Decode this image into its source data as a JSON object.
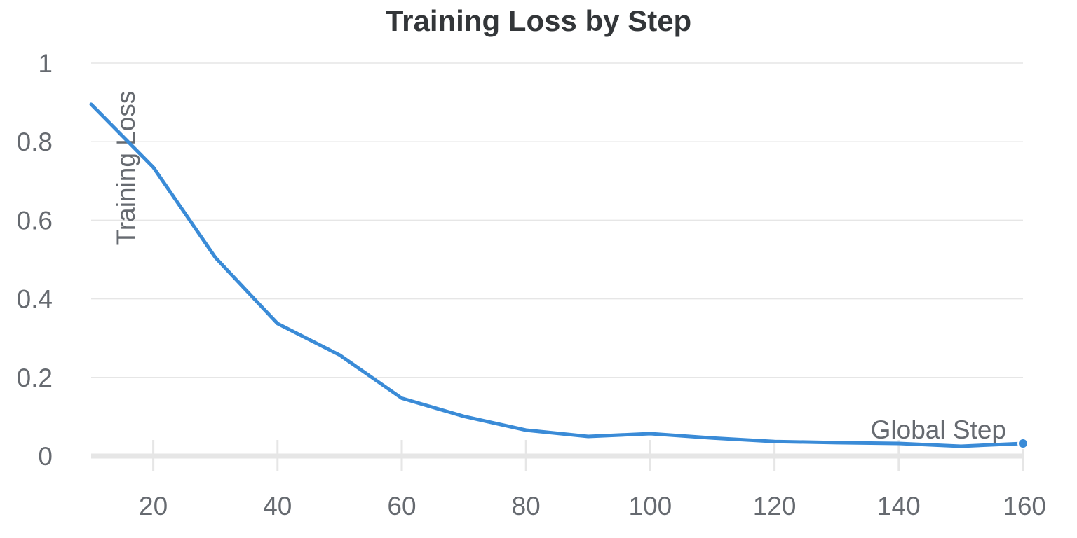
{
  "chart_data": {
    "type": "line",
    "title": "Training Loss by Step",
    "xlabel": "Global Step",
    "ylabel": "Training Loss",
    "xlim": [
      10,
      160
    ],
    "ylim": [
      0,
      1
    ],
    "x_ticks": [
      "20",
      "40",
      "60",
      "80",
      "100",
      "120",
      "140",
      "160"
    ],
    "y_ticks": [
      "0",
      "0.2",
      "0.4",
      "0.6",
      "0.8",
      "1"
    ],
    "grid": true,
    "legend": "none",
    "line_color": "#3a8bd7",
    "series": [
      {
        "x": [
          10,
          20,
          30,
          40,
          50,
          60,
          70,
          80,
          90,
          100,
          110,
          120,
          130,
          140,
          150,
          160
        ],
        "y": [
          0.895,
          0.735,
          0.505,
          0.337,
          0.257,
          0.147,
          0.101,
          0.066,
          0.05,
          0.057,
          0.046,
          0.037,
          0.034,
          0.032,
          0.025,
          0.032
        ]
      }
    ]
  }
}
